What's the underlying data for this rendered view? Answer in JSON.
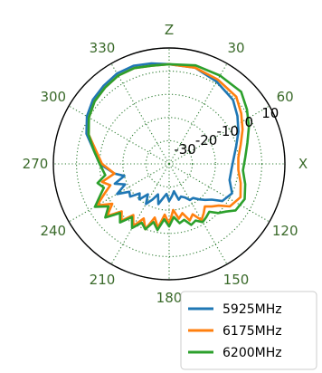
{
  "chart_data": {
    "type": "line",
    "projection": "polar",
    "theta_zero": "top",
    "theta_direction": "clockwise",
    "angular_ticks": [
      {
        "angle": 0,
        "label": "Z"
      },
      {
        "angle": 30,
        "label": "30"
      },
      {
        "angle": 60,
        "label": "60"
      },
      {
        "angle": 90,
        "label": "X"
      },
      {
        "angle": 120,
        "label": "120"
      },
      {
        "angle": 150,
        "label": "150"
      },
      {
        "angle": 180,
        "label": "180"
      },
      {
        "angle": 210,
        "label": "210"
      },
      {
        "angle": 240,
        "label": "240"
      },
      {
        "angle": 270,
        "label": "270"
      },
      {
        "angle": 300,
        "label": "300"
      },
      {
        "angle": 330,
        "label": "330"
      }
    ],
    "radial_ticks": [
      {
        "value": -30,
        "label": "-30"
      },
      {
        "value": -20,
        "label": "-20"
      },
      {
        "value": -10,
        "label": "-10"
      },
      {
        "value": 0,
        "label": "0"
      },
      {
        "value": 10,
        "label": "10"
      }
    ],
    "rlim": [
      -40,
      10
    ],
    "grid": true,
    "legend_position": "bottom-right",
    "colors": {
      "grid": "#2e7d32",
      "tick_label": "#3a6a2a",
      "s5925": "#1f77b4",
      "s6175": "#ff7f0e",
      "s6200": "#2ca02c"
    },
    "series": [
      {
        "name": "5925MHz",
        "color": "#1f77b4",
        "theta": [
          0,
          15,
          30,
          45,
          55,
          65,
          75,
          85,
          95,
          105,
          115,
          125,
          130,
          135,
          140,
          145,
          150,
          155,
          160,
          165,
          170,
          175,
          180,
          185,
          190,
          195,
          200,
          205,
          210,
          215,
          220,
          225,
          230,
          235,
          240,
          245,
          250,
          255,
          260,
          270,
          280,
          290,
          300,
          310,
          320,
          330,
          340,
          350
        ],
        "r": [
          3,
          3,
          1,
          -1,
          -4,
          -7,
          -10,
          -12,
          -13,
          -13,
          -10,
          -12,
          -16,
          -18,
          -20,
          -22,
          -22,
          -24,
          -25,
          -24,
          -28,
          -26,
          -24,
          -27,
          -25,
          -22,
          -26,
          -23,
          -20,
          -24,
          -20,
          -22,
          -18,
          -19,
          -14,
          -19,
          -15,
          -20,
          -16,
          -10,
          -7,
          -2,
          1,
          3,
          4,
          5,
          5,
          4
        ]
      },
      {
        "name": "6175MHz",
        "color": "#ff7f0e",
        "theta": [
          0,
          15,
          30,
          45,
          55,
          65,
          75,
          85,
          95,
          105,
          115,
          125,
          130,
          135,
          140,
          145,
          150,
          155,
          160,
          165,
          170,
          175,
          180,
          185,
          190,
          195,
          200,
          205,
          210,
          215,
          220,
          225,
          230,
          235,
          240,
          245,
          250,
          255,
          260,
          270,
          280,
          290,
          300,
          310,
          320,
          330,
          340,
          350
        ],
        "r": [
          3,
          3,
          2,
          1,
          -2,
          -5,
          -8,
          -10,
          -10,
          -8,
          -6,
          -8,
          -12,
          -14,
          -16,
          -14,
          -12,
          -16,
          -14,
          -18,
          -16,
          -20,
          -14,
          -18,
          -12,
          -16,
          -10,
          -14,
          -9,
          -13,
          -8,
          -11,
          -5,
          -10,
          -4,
          -9,
          -13,
          -10,
          -16,
          -11,
          -8,
          -3,
          0,
          2,
          3,
          4,
          4,
          3
        ]
      },
      {
        "name": "6200MHz",
        "color": "#2ca02c",
        "theta": [
          0,
          15,
          30,
          45,
          55,
          65,
          75,
          85,
          95,
          105,
          115,
          125,
          130,
          135,
          140,
          145,
          150,
          155,
          160,
          165,
          170,
          175,
          180,
          185,
          190,
          195,
          200,
          205,
          210,
          215,
          220,
          225,
          230,
          235,
          240,
          245,
          250,
          255,
          260,
          270,
          280,
          290,
          300,
          310,
          320,
          330,
          340,
          350
        ],
        "r": [
          3,
          4,
          4,
          4,
          1,
          -2,
          -5,
          -7,
          -8,
          -6,
          -4,
          -5,
          -8,
          -10,
          -13,
          -12,
          -11,
          -13,
          -12,
          -15,
          -14,
          -17,
          -13,
          -16,
          -11,
          -14,
          -10,
          -12,
          -8,
          -12,
          -7,
          -10,
          -4,
          -8,
          -3,
          -7,
          -10,
          -8,
          -12,
          -10,
          -7,
          -3,
          0,
          2,
          3,
          4,
          4,
          3
        ]
      }
    ]
  }
}
